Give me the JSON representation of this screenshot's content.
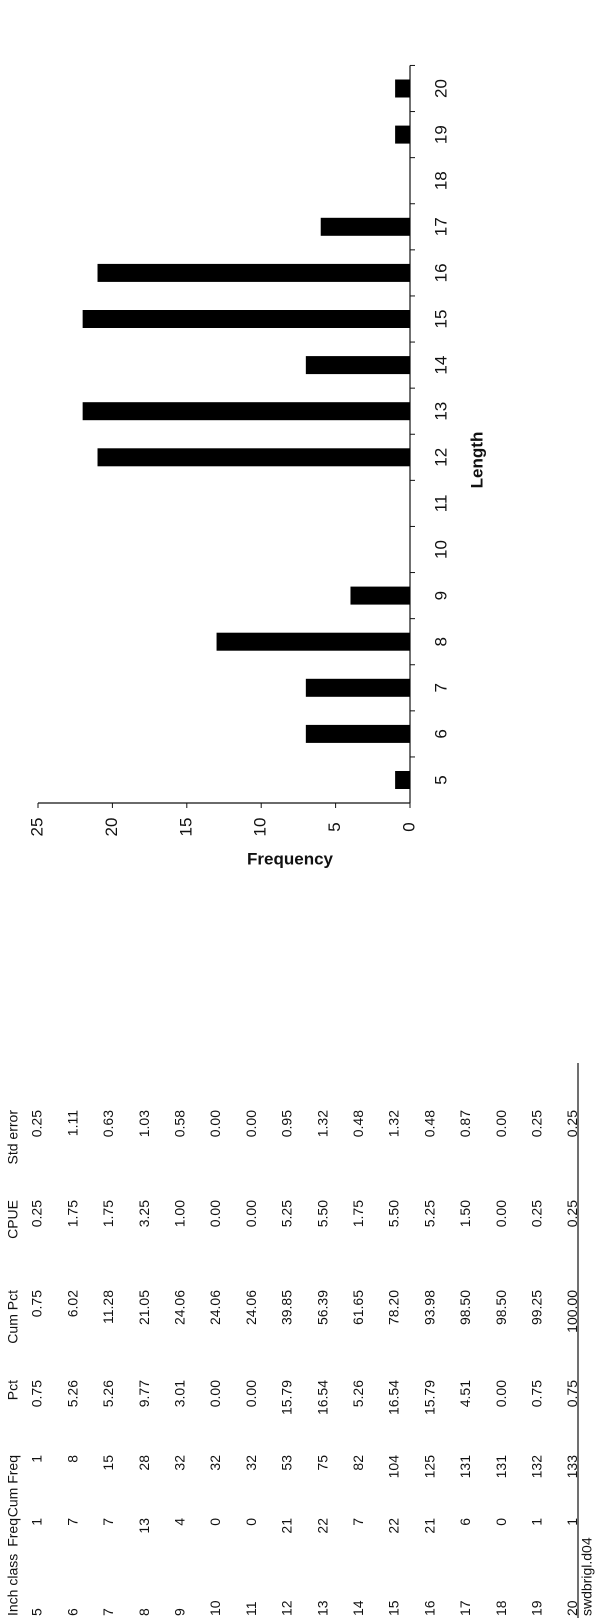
{
  "table": {
    "header": [
      "Inch class",
      "Freq",
      "Cum Freq",
      "Pct",
      "Cum Pct",
      "CPUE",
      "Std error"
    ],
    "rows": [
      [
        "5",
        "1",
        "1",
        "0.75",
        "0.75",
        "0.25",
        "0.25"
      ],
      [
        "6",
        "7",
        "8",
        "5.26",
        "6.02",
        "1.75",
        "1.11"
      ],
      [
        "7",
        "7",
        "15",
        "5.26",
        "11.28",
        "1.75",
        "0.63"
      ],
      [
        "8",
        "13",
        "28",
        "9.77",
        "21.05",
        "3.25",
        "1.03"
      ],
      [
        "9",
        "4",
        "32",
        "3.01",
        "24.06",
        "1.00",
        "0.58"
      ],
      [
        "10",
        "0",
        "32",
        "0.00",
        "24.06",
        "0.00",
        "0.00"
      ],
      [
        "11",
        "0",
        "32",
        "0.00",
        "24.06",
        "0.00",
        "0.00"
      ],
      [
        "12",
        "21",
        "53",
        "15.79",
        "39.85",
        "5.25",
        "0.95"
      ],
      [
        "13",
        "22",
        "75",
        "16.54",
        "56.39",
        "5.50",
        "1.32"
      ],
      [
        "14",
        "7",
        "82",
        "5.26",
        "61.65",
        "1.75",
        "0.48"
      ],
      [
        "15",
        "22",
        "104",
        "16.54",
        "78.20",
        "5.50",
        "1.32"
      ],
      [
        "16",
        "21",
        "125",
        "15.79",
        "93.98",
        "5.25",
        "0.48"
      ],
      [
        "17",
        "6",
        "131",
        "4.51",
        "98.50",
        "1.50",
        "0.87"
      ],
      [
        "18",
        "0",
        "131",
        "0.00",
        "98.50",
        "0.00",
        "0.00"
      ],
      [
        "19",
        "1",
        "132",
        "0.75",
        "99.25",
        "0.25",
        "0.25"
      ],
      [
        "20",
        "1",
        "133",
        "0.75",
        "100.00",
        "0.25",
        "0.25"
      ]
    ]
  },
  "footer": "swdbrigl.d04",
  "chart_data": {
    "type": "bar",
    "x_label": "Length",
    "y_label": "Frequency",
    "categories": [
      "5",
      "6",
      "7",
      "8",
      "9",
      "10",
      "11",
      "12",
      "13",
      "14",
      "15",
      "16",
      "17",
      "18",
      "19",
      "20"
    ],
    "values": [
      1,
      7,
      7,
      13,
      4,
      0,
      0,
      21,
      22,
      7,
      22,
      21,
      6,
      0,
      1,
      1
    ],
    "color": "#000000",
    "ylim": [
      0,
      25
    ],
    "yticks": [
      0,
      5,
      10,
      15,
      20,
      25
    ]
  }
}
